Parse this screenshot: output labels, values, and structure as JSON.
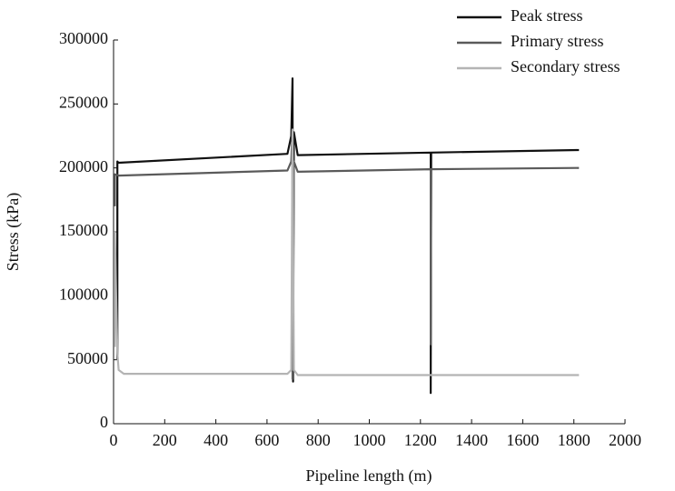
{
  "chart_data": {
    "type": "line",
    "xlabel": "Pipeline length (m)",
    "ylabel": "Stress (kPa)",
    "xlim": [
      0,
      2000
    ],
    "xticks": [
      0,
      200,
      400,
      600,
      800,
      1000,
      1200,
      1400,
      1600,
      1800,
      2000
    ],
    "ylim": [
      0,
      300000
    ],
    "yticks": [
      0,
      50000,
      100000,
      150000,
      200000,
      250000,
      300000
    ],
    "grid": false,
    "legend": "top-right",
    "series": [
      {
        "name": "Peak stress",
        "color": "#111111",
        "x": [
          15,
          15,
          20,
          680,
          695,
          700,
          702,
          705,
          720,
          1240,
          1240,
          1242,
          1820
        ],
        "values": [
          50000,
          205000,
          204000,
          211000,
          225000,
          270000,
          33000,
          228000,
          210000,
          212000,
          24000,
          212000,
          214000
        ]
      },
      {
        "name": "Primary stress",
        "color": "#5a5a5a",
        "x": [
          5,
          5,
          20,
          680,
          695,
          700,
          700,
          705,
          720,
          1240,
          1240,
          1242,
          1820
        ],
        "values": [
          170000,
          195000,
          194000,
          198000,
          205000,
          230000,
          35000,
          205000,
          197000,
          199000,
          62000,
          199000,
          200000
        ]
      },
      {
        "name": "Secondary stress",
        "color": "#b4b4b4",
        "x": [
          5,
          5,
          15,
          20,
          40,
          680,
          695,
          700,
          705,
          720,
          1820
        ],
        "values": [
          60000,
          150000,
          55000,
          42000,
          39000,
          39000,
          42000,
          230000,
          42000,
          38000,
          38000
        ]
      }
    ]
  }
}
